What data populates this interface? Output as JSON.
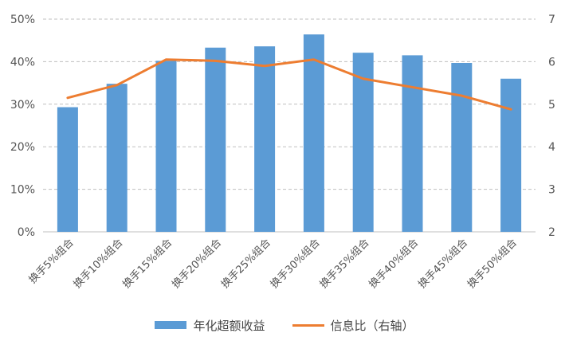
{
  "chart_data": {
    "type": "bar",
    "categories": [
      "换手5%组合",
      "换手10%组合",
      "换手15%组合",
      "换手20%组合",
      "换手25%组合",
      "换手30%组合",
      "换手35%组合",
      "换手40%组合",
      "换手45%组合",
      "换手50%组合"
    ],
    "series": [
      {
        "name": "年化超额收益",
        "type": "bar",
        "axis": "left",
        "color": "#5B9BD5",
        "values": [
          29.3,
          34.8,
          40.2,
          43.3,
          43.6,
          46.4,
          42.1,
          41.5,
          39.7,
          36.0
        ]
      },
      {
        "name": "信息比（右轴）",
        "type": "line",
        "axis": "right",
        "color": "#ED7D31",
        "values": [
          5.15,
          5.45,
          6.05,
          6.02,
          5.9,
          6.05,
          5.6,
          5.4,
          5.2,
          4.88
        ]
      }
    ],
    "y_left": {
      "ylim": [
        0,
        50
      ],
      "ticks": [
        0,
        10,
        20,
        30,
        40,
        50
      ],
      "tick_labels": [
        "0%",
        "10%",
        "20%",
        "30%",
        "40%",
        "50%"
      ]
    },
    "y_right": {
      "ylim": [
        2,
        7
      ],
      "ticks": [
        2,
        3,
        4,
        5,
        6,
        7
      ],
      "tick_labels": [
        "2",
        "3",
        "4",
        "5",
        "6",
        "7"
      ]
    },
    "grid": true,
    "legend_position": "bottom"
  }
}
